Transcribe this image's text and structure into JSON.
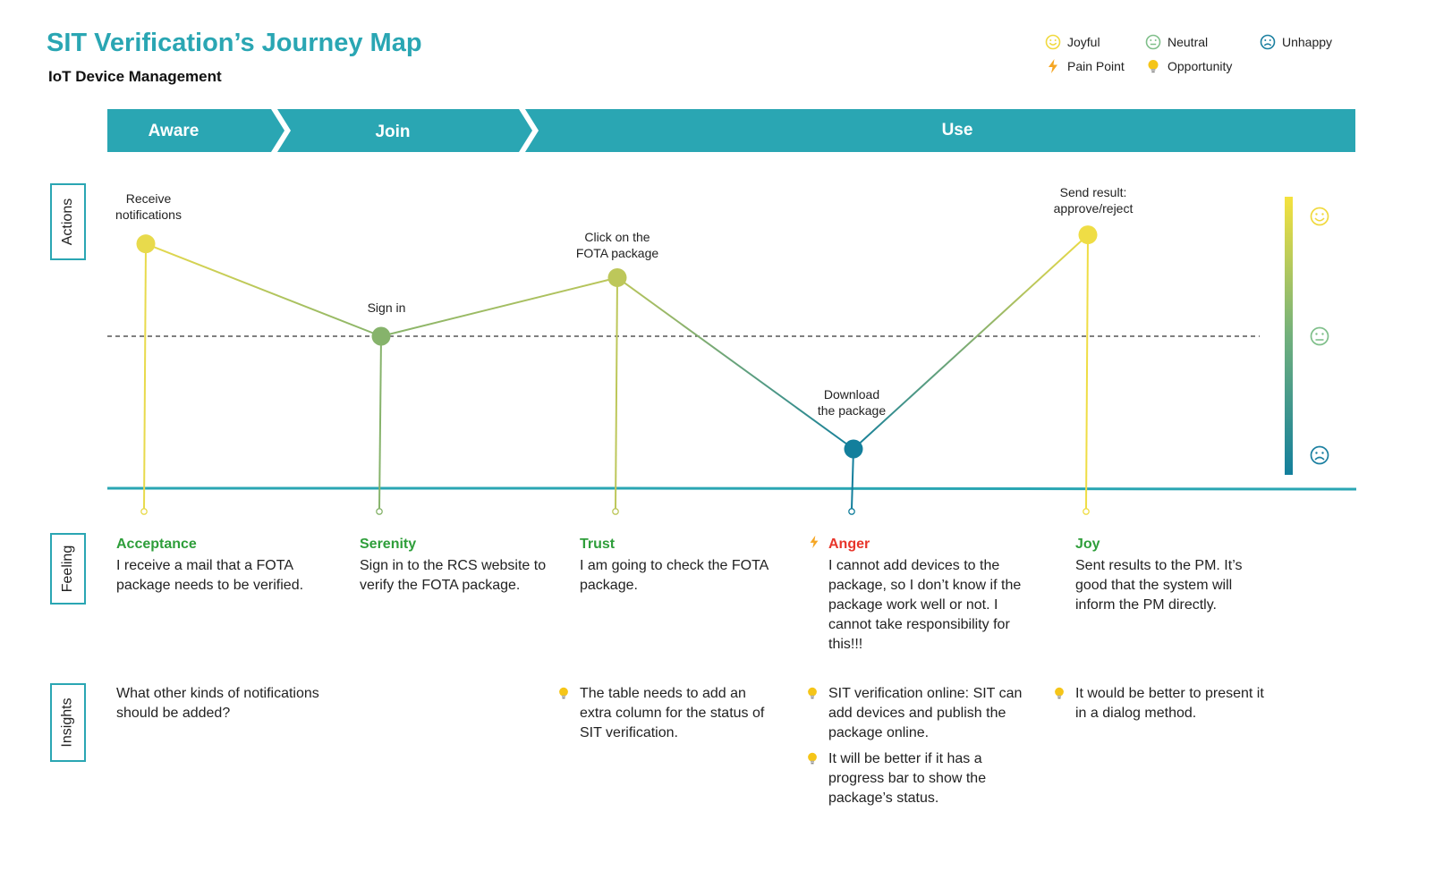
{
  "header": {
    "title": "SIT Verification’s Journey Map",
    "subtitle": "IoT Device Management"
  },
  "legend": [
    {
      "label": "Joyful",
      "icon": "joyful-face-icon",
      "color": "#f0d93e"
    },
    {
      "label": "Neutral",
      "icon": "neutral-face-icon",
      "color": "#7fbf8a"
    },
    {
      "label": "Unhappy",
      "icon": "unhappy-face-icon",
      "color": "#1a7fa0"
    },
    {
      "label": "Pain Point",
      "icon": "lightning-icon",
      "color": "#f5a623"
    },
    {
      "label": "Opportunity",
      "icon": "lightbulb-icon",
      "color": "#f5c518"
    }
  ],
  "stages": [
    "Aware",
    "Join",
    "Use"
  ],
  "section_labels": {
    "actions": "Actions",
    "feeling": "Feeling",
    "insights": "Insights"
  },
  "chart_data": {
    "type": "line",
    "x": [
      "Receive notifications",
      "Sign in",
      "Click on the FOTA package",
      "Download the package",
      "Send result: approve/reject"
    ],
    "emotion_scale": [
      "Unhappy",
      "Neutral",
      "Joyful"
    ],
    "values": [
      0.82,
      0.0,
      0.52,
      -1.0,
      0.9
    ],
    "neutral_line": 0,
    "ylim": [
      -1.2,
      1.2
    ],
    "point_colors": [
      "#e8da4c",
      "#86b36b",
      "#bdc75a",
      "#137f9c",
      "#efdd45"
    ]
  },
  "actions": [
    {
      "label_lines": [
        "Receive",
        "notifications"
      ]
    },
    {
      "label_lines": [
        "Sign in"
      ]
    },
    {
      "label_lines": [
        "Click on the",
        "FOTA package"
      ]
    },
    {
      "label_lines": [
        "Download",
        "the package"
      ]
    },
    {
      "label_lines": [
        "Send result:",
        "approve/reject"
      ]
    }
  ],
  "feelings": [
    {
      "name": "Acceptance",
      "name_color": "#2e9e3a",
      "text": "I receive a mail that a FOTA package needs to be verified.",
      "pain_point": false
    },
    {
      "name": "Serenity",
      "name_color": "#2e9e3a",
      "text": "Sign in to the RCS website to verify the FOTA package.",
      "pain_point": false
    },
    {
      "name": "Trust",
      "name_color": "#2e9e3a",
      "text": "I am going to check the FOTA package.",
      "pain_point": false
    },
    {
      "name": "Anger",
      "name_color": "#e8352b",
      "text": "I cannot add devices to the package, so I don’t know if the package work well or not. I cannot take responsibility for this!!!",
      "pain_point": true
    },
    {
      "name": "Joy",
      "name_color": "#2e9e3a",
      "text": "Sent results to the PM. It’s good that the system will inform the PM directly.",
      "pain_point": false
    }
  ],
  "insights": [
    {
      "text": "What other kinds of notifications should be added?",
      "opportunity": false
    },
    {
      "text": "The table needs to add an extra column for the status of SIT verification.",
      "opportunity": true
    },
    {
      "text": "SIT verification online: SIT can add devices and publish the package online.",
      "opportunity": true
    },
    {
      "text": "It will be better if it has a progress bar to show the package’s  status.",
      "opportunity": true
    },
    {
      "text": "It would be better to present it in a dialog method.",
      "opportunity": true
    }
  ]
}
